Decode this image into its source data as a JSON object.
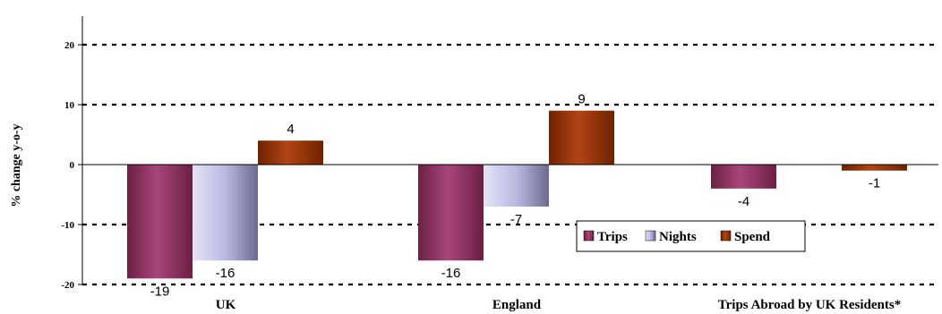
{
  "chart_data": {
    "type": "bar",
    "ylabel": "% change y-o-y",
    "ylim": [
      -20,
      20
    ],
    "yticks": [
      "20",
      "10",
      "0",
      "-10",
      "-20"
    ],
    "grid": true,
    "legend_position": "center-right",
    "categories": [
      "UK",
      "England",
      "Trips Abroad by UK Residents*"
    ],
    "series": [
      {
        "name": "Trips",
        "color": "#993366",
        "values": [
          -19,
          -16,
          -4
        ]
      },
      {
        "name": "Nights",
        "color": "#9999cc",
        "values": [
          -16,
          -7,
          null
        ]
      },
      {
        "name": "Spend",
        "color": "#993300",
        "values": [
          4,
          9,
          -1
        ]
      }
    ]
  }
}
